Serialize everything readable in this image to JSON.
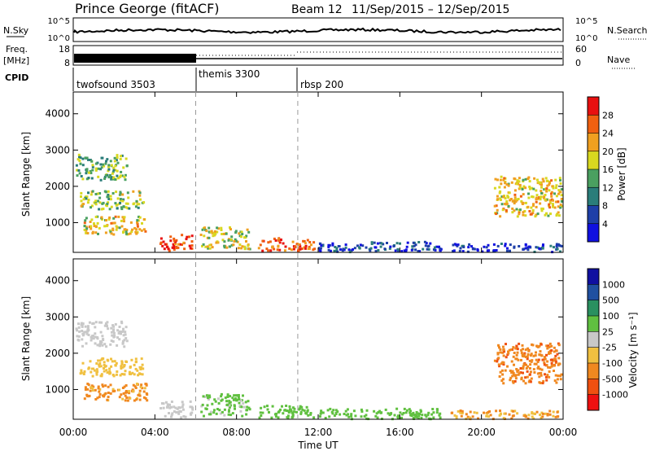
{
  "header": {
    "station": "Prince George (fitACF)",
    "beam": "Beam 12",
    "dates": "11/Sep/2015 – 12/Sep/2015"
  },
  "top_panels": {
    "nsky_label": "N.Sky",
    "nsky_ticks": [
      "10^5",
      "10^0"
    ],
    "nsky_right_ticks": [
      "10^5",
      "10^0"
    ],
    "nsearch_label": "N.Search",
    "freq_label": "Freq.",
    "freq_unit": "[MHz]",
    "freq_ticks": [
      "18",
      "8"
    ],
    "nave_ticks": [
      "60",
      "0"
    ],
    "nave_label": "Nave",
    "cpid_label": "CPID",
    "cpid_modes": [
      {
        "name": "twofsound 3503",
        "start_hour": 0,
        "end_hour": 6
      },
      {
        "name": "themis 3300",
        "start_hour": 6,
        "end_hour": 11
      },
      {
        "name": "rbsp 200",
        "start_hour": 11,
        "end_hour": 24
      }
    ]
  },
  "colors": {
    "power": [
      "#1010e0",
      "#1e3fa8",
      "#2a7d7a",
      "#4aa060",
      "#d8d820",
      "#f0a020",
      "#f06010",
      "#e81010"
    ],
    "velocity": [
      "#ee1010",
      "#f05010",
      "#f08820",
      "#f0c040",
      "#c8c8c8",
      "#60c040",
      "#2a9060",
      "#2050a0",
      "#1010a0"
    ]
  },
  "chart_data": [
    {
      "type": "heatmap",
      "name": "power",
      "ylabel": "Slant Range [km]",
      "yticks": [
        1000,
        2000,
        3000,
        4000
      ],
      "ylim": [
        180,
        4600
      ],
      "xlim": [
        0,
        24
      ],
      "colorbar": {
        "label": "Power [dB]",
        "ticks": [
          "28",
          "24",
          "20",
          "16",
          "12",
          "8",
          "4"
        ],
        "range": [
          0,
          32
        ]
      },
      "blobs": [
        {
          "t0": 0.1,
          "t1": 2.6,
          "r0": 2200,
          "r1": 2900,
          "v": 14
        },
        {
          "t0": 0.3,
          "t1": 3.4,
          "r0": 1400,
          "r1": 1900,
          "v": 16
        },
        {
          "t0": 0.5,
          "t1": 3.6,
          "r0": 700,
          "r1": 1200,
          "v": 20
        },
        {
          "t0": 4.2,
          "t1": 5.8,
          "r0": 250,
          "r1": 700,
          "v": 28
        },
        {
          "t0": 6.2,
          "t1": 8.6,
          "r0": 300,
          "r1": 900,
          "v": 18
        },
        {
          "t0": 9.0,
          "t1": 11.8,
          "r0": 250,
          "r1": 600,
          "v": 26
        },
        {
          "t0": 12.0,
          "t1": 18.0,
          "r0": 220,
          "r1": 500,
          "v": 6
        },
        {
          "t0": 20.6,
          "t1": 23.9,
          "r0": 1200,
          "r1": 2300,
          "v": 20
        },
        {
          "t0": 18.4,
          "t1": 23.9,
          "r0": 220,
          "r1": 450,
          "v": 5
        }
      ]
    },
    {
      "type": "heatmap",
      "name": "velocity",
      "ylabel": "Slant Range [km]",
      "xlabel": "Time UT",
      "xticks": [
        "00:00",
        "04:00",
        "08:00",
        "12:00",
        "16:00",
        "20:00",
        "00:00"
      ],
      "yticks": [
        1000,
        2000,
        3000,
        4000
      ],
      "ylim": [
        180,
        4600
      ],
      "xlim": [
        0,
        24
      ],
      "colorbar": {
        "label": "Velocity [m s⁻¹]",
        "ticks": [
          "1000",
          "500",
          "100",
          "25",
          "-25",
          "-100",
          "-500",
          "-1000"
        ]
      },
      "blobs": [
        {
          "t0": 0.1,
          "t1": 2.6,
          "r0": 2200,
          "r1": 2900,
          "v": 0
        },
        {
          "t0": 0.3,
          "t1": 3.4,
          "r0": 1400,
          "r1": 1900,
          "v": -60
        },
        {
          "t0": 0.5,
          "t1": 3.6,
          "r0": 700,
          "r1": 1200,
          "v": -150
        },
        {
          "t0": 4.2,
          "t1": 5.8,
          "r0": 250,
          "r1": 700,
          "v": 0
        },
        {
          "t0": 6.2,
          "t1": 8.6,
          "r0": 300,
          "r1": 900,
          "v": 40
        },
        {
          "t0": 9.0,
          "t1": 11.8,
          "r0": 250,
          "r1": 600,
          "v": 60
        },
        {
          "t0": 12.0,
          "t1": 18.0,
          "r0": 220,
          "r1": 500,
          "v": 50
        },
        {
          "t0": 20.6,
          "t1": 23.9,
          "r0": 1200,
          "r1": 2300,
          "v": -400
        },
        {
          "t0": 18.4,
          "t1": 23.9,
          "r0": 220,
          "r1": 450,
          "v": -100
        }
      ]
    }
  ]
}
